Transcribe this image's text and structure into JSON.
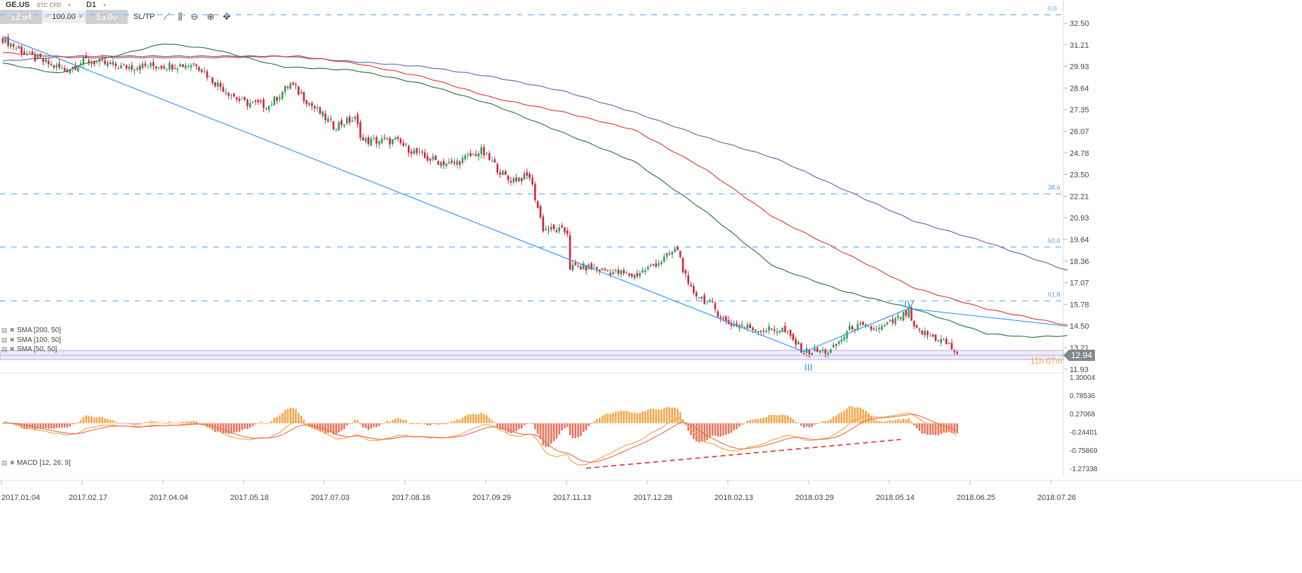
{
  "toolbar": {
    "symbol": "GE.US",
    "type": "STC CFD",
    "timeframe": "D1",
    "sell_price": "12.94",
    "volume": "100.00",
    "buy_price": "13.00",
    "sltp_label": "SL/TP",
    "minus": "–",
    "plus": "+",
    "caret": "▾",
    "icons": [
      "line-chart-icon",
      "candlestick-icon",
      "zoom-out-icon",
      "zoom-in-icon",
      "crosshair-icon"
    ]
  },
  "indicators": [
    "SMA [200, 50]",
    "SMA [100, 50]",
    "SMA [50, 50]"
  ],
  "macd_label": "MACD [12, 26, 9]",
  "price_axis": [
    "32.50",
    "31.21",
    "29.93",
    "28.64",
    "27.35",
    "26.07",
    "24.78",
    "23.50",
    "22.21",
    "20.93",
    "19.64",
    "18.36",
    "17.07",
    "15.78",
    "14.50",
    "13.21",
    "11.93"
  ],
  "macd_axis": [
    "1.30004",
    "0.78536",
    "0.27068",
    "-0.24401",
    "-0.75869",
    "-1.27338"
  ],
  "date_axis": [
    "2017.01.04",
    "2017.02.17",
    "2017.04.04",
    "2017.05.18",
    "2017.07.03",
    "2017.08.16",
    "2017.09.29",
    "2017.11.13",
    "2017.12.28",
    "2018.02.13",
    "2018.03.29",
    "2018.05.14",
    "2018.06.25",
    "2018.07.26"
  ],
  "fib_levels": [
    {
      "label": "0.0",
      "price": 33.0
    },
    {
      "label": "38.6",
      "price": 22.36
    },
    {
      "label": "50.0",
      "price": 19.2
    },
    {
      "label": "61.8",
      "price": 16.0
    }
  ],
  "current_price": "12.94",
  "countdown": "11h 07m",
  "wave_labels": {
    "iii": "III",
    "iv": "IV"
  },
  "colors": {
    "bull": "#2e9e5b",
    "bear": "#d4213d",
    "sma50": "#2f7a4f",
    "sma100": "#e0413a",
    "sma200": "#6a6ab8",
    "trend": "#3399ff",
    "fib": "#7fbfff",
    "macd": "#f5a54a",
    "signal": "#e8735a",
    "divergence": "#e0413a"
  },
  "chart_data": {
    "type": "candlestick",
    "price_anchors_day_close": [
      [
        0,
        31.58
      ],
      [
        10,
        30.54
      ],
      [
        23,
        29.7
      ],
      [
        31,
        30.3
      ],
      [
        44,
        29.9
      ],
      [
        65,
        30.0
      ],
      [
        72,
        30.1
      ],
      [
        78,
        29.1
      ],
      [
        89,
        27.8
      ],
      [
        99,
        27.6
      ],
      [
        107,
        28.9
      ],
      [
        115,
        27.6
      ],
      [
        123,
        26.4
      ],
      [
        131,
        26.8
      ],
      [
        134,
        25.5
      ],
      [
        146,
        25.5
      ],
      [
        157,
        24.5
      ],
      [
        167,
        24.1
      ],
      [
        178,
        24.9
      ],
      [
        188,
        23.2
      ],
      [
        196,
        23.4
      ],
      [
        201,
        20.3
      ],
      [
        210,
        20.1
      ],
      [
        211,
        18.0
      ],
      [
        217,
        18.0
      ],
      [
        235,
        17.5
      ],
      [
        245,
        18.4
      ],
      [
        251,
        19.1
      ],
      [
        255,
        16.8
      ],
      [
        264,
        15.7
      ],
      [
        269,
        14.7
      ],
      [
        282,
        14.3
      ],
      [
        290,
        14.3
      ],
      [
        298,
        13.0
      ],
      [
        308,
        13.0
      ],
      [
        316,
        14.5
      ],
      [
        326,
        14.3
      ],
      [
        337,
        15.3
      ],
      [
        339,
        14.3
      ],
      [
        350,
        13.6
      ],
      [
        355,
        12.9
      ]
    ],
    "sma50": [
      [
        0,
        30.12
      ],
      [
        21,
        29.5
      ],
      [
        31,
        30.12
      ],
      [
        60,
        31.29
      ],
      [
        78,
        30.96
      ],
      [
        104,
        29.91
      ],
      [
        131,
        29.7
      ],
      [
        157,
        28.87
      ],
      [
        183,
        27.62
      ],
      [
        209,
        25.95
      ],
      [
        235,
        24.28
      ],
      [
        261,
        21.36
      ],
      [
        287,
        18.02
      ],
      [
        313,
        16.56
      ],
      [
        339,
        15.52
      ],
      [
        366,
        14.06
      ],
      [
        381,
        13.85
      ],
      [
        396,
        13.93
      ]
    ],
    "sma100": [
      [
        0,
        30.75
      ],
      [
        26,
        30.46
      ],
      [
        78,
        30.46
      ],
      [
        110,
        30.54
      ],
      [
        131,
        30.12
      ],
      [
        157,
        29.29
      ],
      [
        183,
        28.04
      ],
      [
        209,
        27.2
      ],
      [
        235,
        26.16
      ],
      [
        261,
        23.86
      ],
      [
        287,
        20.94
      ],
      [
        313,
        18.86
      ],
      [
        339,
        16.77
      ],
      [
        366,
        15.52
      ],
      [
        396,
        14.56
      ]
    ],
    "sma200": [
      [
        0,
        30.25
      ],
      [
        26,
        30.54
      ],
      [
        104,
        30.54
      ],
      [
        131,
        30.21
      ],
      [
        157,
        29.91
      ],
      [
        183,
        29.29
      ],
      [
        209,
        28.45
      ],
      [
        235,
        27.2
      ],
      [
        261,
        25.74
      ],
      [
        287,
        24.49
      ],
      [
        313,
        22.61
      ],
      [
        339,
        20.74
      ],
      [
        366,
        19.48
      ],
      [
        396,
        17.81
      ]
    ],
    "trendline": [
      [
        0,
        31.7
      ],
      [
        298,
        12.98
      ],
      [
        337,
        15.55
      ],
      [
        396,
        14.5
      ]
    ],
    "divergence_line": [
      [
        217,
        -1.27
      ],
      [
        334,
        -0.46
      ]
    ],
    "ylim": [
      11.93,
      32.5
    ],
    "macd_ylim": [
      -1.27338,
      1.30004
    ]
  }
}
